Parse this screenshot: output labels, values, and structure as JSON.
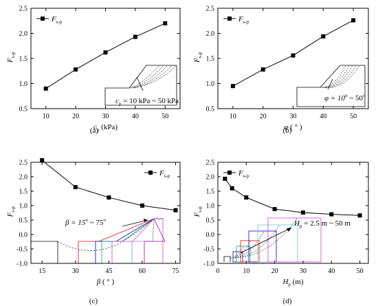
{
  "chart_data": [
    {
      "type": "line",
      "panel_label": "(a)",
      "xlabel": "c",
      "xlabel_sub": "p",
      "xlabel_unit": "(kPa)",
      "ylabel": "F",
      "ylabel_sub": "s-p",
      "xlim": [
        5,
        55
      ],
      "ylim": [
        0.5,
        2.5
      ],
      "xticks": [
        "10",
        "20",
        "30",
        "40",
        "50"
      ],
      "yticks": [
        "0.5",
        "1.0",
        "1.5",
        "2.0",
        "2.5"
      ],
      "legend": {
        "name": "F",
        "sub": "s-p",
        "placement": "top-left"
      },
      "series": [
        {
          "x": [
            10,
            20,
            30,
            40,
            50
          ],
          "values": [
            0.9,
            1.28,
            1.62,
            1.93,
            2.2
          ]
        }
      ],
      "inset_text": {
        "pre": "c",
        "sub": "p",
        "post": " = 10 kPa ~ 50 kPa"
      }
    },
    {
      "type": "line",
      "panel_label": "(b)",
      "xlabel": "φ",
      "xlabel_unit": "( ° )",
      "ylabel": "F",
      "ylabel_sub": "s-p",
      "xlim": [
        5,
        55
      ],
      "ylim": [
        0.5,
        2.5
      ],
      "xticks": [
        "10",
        "20",
        "30",
        "40",
        "50"
      ],
      "yticks": [
        "0.5",
        "1.0",
        "1.5",
        "2.0",
        "2.5"
      ],
      "legend": {
        "name": "F",
        "sub": "s-p",
        "placement": "top-left"
      },
      "series": [
        {
          "x": [
            10,
            20,
            30,
            40,
            50
          ],
          "values": [
            0.95,
            1.28,
            1.56,
            1.94,
            2.26
          ]
        }
      ],
      "inset_text": {
        "pre": "φ = 10",
        "sup1": "o",
        "mid": " ~ 50",
        "sup2": "o"
      }
    },
    {
      "type": "line",
      "panel_label": "(c)",
      "xlabel": "β",
      "xlabel_unit": "( ° )",
      "ylabel": "F",
      "ylabel_sub": "s-p",
      "xlim": [
        10,
        77
      ],
      "ylim": [
        -1.0,
        2.5
      ],
      "xticks": [
        "15",
        "30",
        "45",
        "60",
        "75"
      ],
      "yticks": [
        "-1.0",
        "-0.5",
        "0.0",
        "0.5",
        "1.0",
        "1.5",
        "2.0",
        "2.5"
      ],
      "legend": {
        "name": "F",
        "sub": "s-p",
        "placement": "top-right"
      },
      "series": [
        {
          "x": [
            15,
            30,
            45,
            60,
            75
          ],
          "values": [
            2.57,
            1.64,
            1.28,
            1.0,
            0.84
          ]
        }
      ],
      "inset_text": {
        "pre": "β = 15",
        "sup1": "o",
        "mid": " ~ 75",
        "sup2": "o"
      }
    },
    {
      "type": "line",
      "panel_label": "(d)",
      "xlabel": "H",
      "xlabel_sub": "p",
      "xlabel_unit": "(m)",
      "ylabel": "F",
      "ylabel_sub": "s-p",
      "xlim": [
        0,
        53
      ],
      "ylim": [
        -1.0,
        2.5
      ],
      "xticks": [
        "0",
        "10",
        "20",
        "30",
        "40",
        "50"
      ],
      "yticks": [
        "-1.0",
        "-0.5",
        "0.0",
        "0.5",
        "1.0",
        "1.5",
        "2.0",
        "2.5"
      ],
      "legend": {
        "name": "F",
        "sub": "s-p",
        "placement": "top-left"
      },
      "series": [
        {
          "x": [
            2.5,
            5,
            10,
            20,
            30,
            40,
            50
          ],
          "values": [
            1.93,
            1.6,
            1.28,
            0.88,
            0.76,
            0.7,
            0.66
          ]
        }
      ],
      "inset_text": {
        "pre": "H",
        "sub": "p",
        "post": " = 2.5 m ~ 50 m"
      }
    }
  ]
}
